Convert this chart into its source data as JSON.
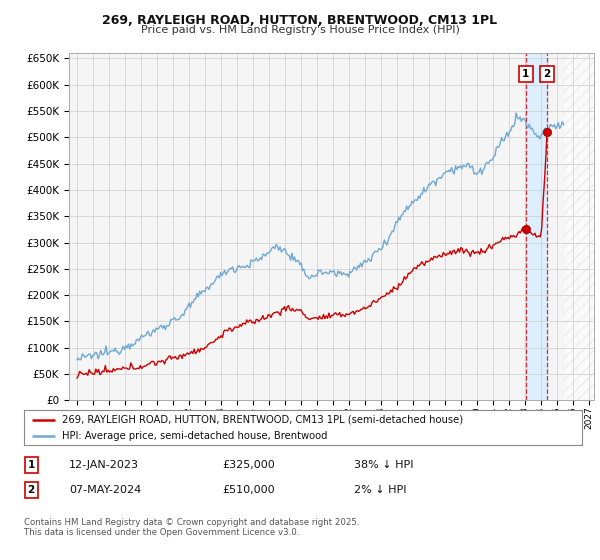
{
  "title": "269, RAYLEIGH ROAD, HUTTON, BRENTWOOD, CM13 1PL",
  "subtitle": "Price paid vs. HM Land Registry's House Price Index (HPI)",
  "legend_line1": "269, RAYLEIGH ROAD, HUTTON, BRENTWOOD, CM13 1PL (semi-detached house)",
  "legend_line2": "HPI: Average price, semi-detached house, Brentwood",
  "footnote": "Contains HM Land Registry data © Crown copyright and database right 2025.\nThis data is licensed under the Open Government Licence v3.0.",
  "table_rows": [
    {
      "num": "1",
      "date": "12-JAN-2023",
      "price": "£325,000",
      "hpi": "38% ↓ HPI"
    },
    {
      "num": "2",
      "date": "07-MAY-2024",
      "price": "£510,000",
      "hpi": "2% ↓ HPI"
    }
  ],
  "ylim": [
    0,
    660000
  ],
  "yticks": [
    0,
    50000,
    100000,
    150000,
    200000,
    250000,
    300000,
    350000,
    400000,
    450000,
    500000,
    550000,
    600000,
    650000
  ],
  "xmin": 1994.5,
  "xmax": 2027.3,
  "sale1_x": 2023.04,
  "sale1_price": 325000,
  "sale2_x": 2024.37,
  "sale2_price": 510000,
  "price_color": "#cc0000",
  "hpi_color": "#6fa8d4",
  "shade_color": "#ddeeff",
  "background_color": "#f5f5f5",
  "grid_color": "#cccccc",
  "hatch_color": "#dddddd"
}
